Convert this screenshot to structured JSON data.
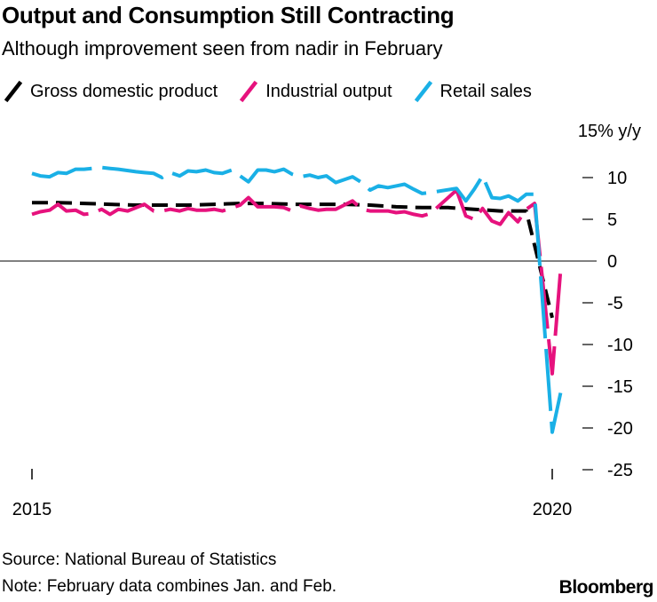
{
  "title": "Output and Consumption Still Contracting",
  "subtitle": "Although improvement seen from nadir in February",
  "unit_label": "15% y/y",
  "source": "Source: National Bureau of Statistics",
  "note": "Note: February data combines Jan. and Feb.",
  "brand": "Bloomberg",
  "colors": {
    "gdp": "#000000",
    "industrial": "#e6127d",
    "retail": "#1ab0e6",
    "axis": "#000000"
  },
  "chart_data": {
    "type": "line",
    "title": "Output and Consumption Still Contracting",
    "subtitle": "Although improvement seen from nadir in February",
    "ylabel": "% y/y",
    "ylim": [
      -25,
      15
    ],
    "xlim": [
      2015.0,
      2020.25
    ],
    "yticks": [
      10,
      5,
      0,
      -5,
      -10,
      -15,
      -20,
      -25
    ],
    "ytick_labels": [
      "10",
      "5",
      "0",
      "-5",
      "-10",
      "-15",
      "-20",
      "-25"
    ],
    "xticks": [
      2015,
      2020
    ],
    "xtick_labels": [
      "2015",
      "2020"
    ],
    "zero_line": true,
    "legend_position": "top",
    "series": [
      {
        "name": "Gross domestic product",
        "style": "dashed",
        "points": [
          [
            2015.0,
            7.0
          ],
          [
            2015.25,
            7.0
          ],
          [
            2015.5,
            6.9
          ],
          [
            2015.75,
            6.8
          ],
          [
            2016.0,
            6.7
          ],
          [
            2016.25,
            6.7
          ],
          [
            2016.5,
            6.7
          ],
          [
            2016.75,
            6.8
          ],
          [
            2017.0,
            6.9
          ],
          [
            2017.25,
            6.9
          ],
          [
            2017.5,
            6.8
          ],
          [
            2017.75,
            6.8
          ],
          [
            2018.0,
            6.8
          ],
          [
            2018.25,
            6.7
          ],
          [
            2018.5,
            6.5
          ],
          [
            2018.75,
            6.4
          ],
          [
            2019.0,
            6.4
          ],
          [
            2019.25,
            6.2
          ],
          [
            2019.5,
            6.0
          ],
          [
            2019.75,
            6.0
          ],
          [
            2020.0,
            -6.8
          ]
        ]
      },
      {
        "name": "Industrial output",
        "style": "broken",
        "points": [
          [
            2015.0,
            5.6
          ],
          [
            2015.08,
            5.9
          ],
          [
            2015.17,
            6.1
          ],
          [
            2015.25,
            6.8
          ],
          [
            2015.33,
            6.0
          ],
          [
            2015.42,
            6.1
          ],
          [
            2015.5,
            5.6
          ],
          [
            2015.58,
            5.7
          ],
          [
            2015.67,
            6.2
          ],
          [
            2015.75,
            5.6
          ],
          [
            2015.83,
            6.2
          ],
          [
            2015.92,
            6.0
          ],
          [
            2016.08,
            6.8
          ],
          [
            2016.17,
            6.0
          ],
          [
            2016.25,
            6.0
          ],
          [
            2016.33,
            6.2
          ],
          [
            2016.42,
            6.0
          ],
          [
            2016.5,
            6.3
          ],
          [
            2016.58,
            6.1
          ],
          [
            2016.67,
            6.1
          ],
          [
            2016.75,
            6.2
          ],
          [
            2016.83,
            6.0
          ],
          [
            2017.0,
            6.7
          ],
          [
            2017.08,
            7.6
          ],
          [
            2017.17,
            6.5
          ],
          [
            2017.25,
            6.5
          ],
          [
            2017.33,
            6.5
          ],
          [
            2017.42,
            6.4
          ],
          [
            2017.5,
            6.0
          ],
          [
            2017.58,
            6.6
          ],
          [
            2017.67,
            6.3
          ],
          [
            2017.75,
            6.1
          ],
          [
            2017.83,
            6.2
          ],
          [
            2017.92,
            6.2
          ],
          [
            2018.08,
            7.2
          ],
          [
            2018.17,
            6.2
          ],
          [
            2018.25,
            6.0
          ],
          [
            2018.33,
            6.0
          ],
          [
            2018.42,
            6.0
          ],
          [
            2018.5,
            5.8
          ],
          [
            2018.58,
            5.9
          ],
          [
            2018.67,
            5.6
          ],
          [
            2018.75,
            5.4
          ],
          [
            2018.83,
            5.7
          ],
          [
            2019.08,
            8.5
          ],
          [
            2019.17,
            5.4
          ],
          [
            2019.25,
            5.0
          ],
          [
            2019.33,
            6.3
          ],
          [
            2019.42,
            4.8
          ],
          [
            2019.5,
            4.4
          ],
          [
            2019.58,
            5.8
          ],
          [
            2019.67,
            4.7
          ],
          [
            2019.75,
            6.2
          ],
          [
            2019.83,
            6.9
          ],
          [
            2020.0,
            -13.5
          ],
          [
            2020.08,
            -1.1
          ]
        ]
      },
      {
        "name": "Retail sales",
        "style": "broken",
        "points": [
          [
            2015.0,
            10.5
          ],
          [
            2015.08,
            10.2
          ],
          [
            2015.17,
            10.1
          ],
          [
            2015.25,
            10.6
          ],
          [
            2015.33,
            10.5
          ],
          [
            2015.42,
            11.0
          ],
          [
            2015.5,
            11.0
          ],
          [
            2015.58,
            11.1
          ],
          [
            2015.67,
            11.2
          ],
          [
            2015.75,
            11.1
          ],
          [
            2015.83,
            11.0
          ],
          [
            2016.0,
            10.7
          ],
          [
            2016.08,
            10.6
          ],
          [
            2016.17,
            10.5
          ],
          [
            2016.25,
            10.0
          ],
          [
            2016.33,
            10.6
          ],
          [
            2016.42,
            10.2
          ],
          [
            2016.5,
            10.8
          ],
          [
            2016.58,
            10.7
          ],
          [
            2016.67,
            10.9
          ],
          [
            2016.75,
            10.6
          ],
          [
            2016.83,
            10.5
          ],
          [
            2016.92,
            10.9
          ],
          [
            2017.08,
            9.5
          ],
          [
            2017.17,
            10.9
          ],
          [
            2017.25,
            10.9
          ],
          [
            2017.33,
            10.7
          ],
          [
            2017.42,
            11.0
          ],
          [
            2017.5,
            10.4
          ],
          [
            2017.58,
            10.1
          ],
          [
            2017.67,
            10.3
          ],
          [
            2017.75,
            10.0
          ],
          [
            2017.83,
            10.2
          ],
          [
            2017.92,
            9.4
          ],
          [
            2018.08,
            10.1
          ],
          [
            2018.17,
            9.4
          ],
          [
            2018.25,
            8.5
          ],
          [
            2018.33,
            9.0
          ],
          [
            2018.42,
            8.8
          ],
          [
            2018.5,
            9.0
          ],
          [
            2018.58,
            9.2
          ],
          [
            2018.67,
            8.6
          ],
          [
            2018.75,
            8.1
          ],
          [
            2018.83,
            8.2
          ],
          [
            2019.08,
            8.7
          ],
          [
            2019.17,
            7.2
          ],
          [
            2019.25,
            8.6
          ],
          [
            2019.33,
            10.2
          ],
          [
            2019.42,
            7.6
          ],
          [
            2019.5,
            7.5
          ],
          [
            2019.58,
            7.8
          ],
          [
            2019.67,
            7.2
          ],
          [
            2019.75,
            8.0
          ],
          [
            2019.83,
            8.0
          ],
          [
            2020.0,
            -20.5
          ],
          [
            2020.08,
            -15.8
          ]
        ]
      }
    ]
  }
}
